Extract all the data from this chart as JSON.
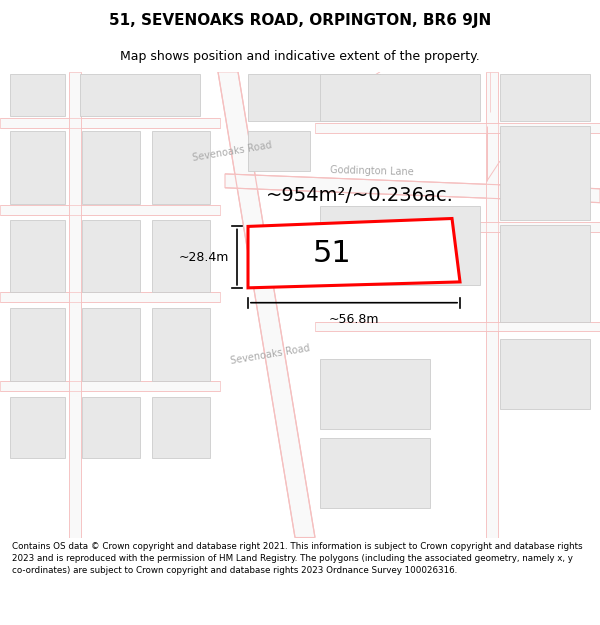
{
  "title": "51, SEVENOAKS ROAD, ORPINGTON, BR6 9JN",
  "subtitle": "Map shows position and indicative extent of the property.",
  "footnote": "Contains OS data © Crown copyright and database right 2021. This information is subject to Crown copyright and database rights 2023 and is reproduced with the permission of HM Land Registry. The polygons (including the associated geometry, namely x, y co-ordinates) are subject to Crown copyright and database rights 2023 Ordnance Survey 100026316.",
  "map_bg": "#ffffff",
  "road_color": "#f5c0c0",
  "building_fill": "#e8e8e8",
  "building_edge": "#cccccc",
  "plot_fill": "#ffffff",
  "plot_edge": "#ff0000",
  "plot_label": "51",
  "area_text": "~954m²/~0.236ac.",
  "width_text": "~56.8m",
  "height_text": "~28.4m",
  "road_label_upper": "Sevenoaks Road",
  "road_label_lower": "Sevenoaks Road",
  "lane_label": "Goddington Lane",
  "title_fontsize": 11,
  "subtitle_fontsize": 9,
  "footnote_fontsize": 6.3
}
